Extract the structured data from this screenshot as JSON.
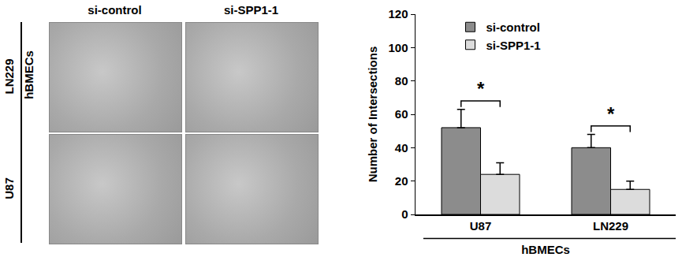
{
  "image_panel": {
    "columns": [
      "si-control",
      "si-SPP1-1"
    ],
    "rows": [
      "LN229",
      "U87"
    ],
    "group_label": "hBMECs"
  },
  "chart_data": {
    "type": "bar",
    "categories": [
      "U87",
      "LN229"
    ],
    "xlabel": "hBMECs",
    "ylabel": "Number of Intersections",
    "series": [
      {
        "name": "si-control",
        "color": "#8c8c8c",
        "values": [
          52,
          40
        ],
        "errors": [
          11,
          8
        ]
      },
      {
        "name": "si-SPP1-1",
        "color": "#dcdcdc",
        "values": [
          24,
          15
        ],
        "errors": [
          7,
          5
        ]
      }
    ],
    "ylim": [
      0,
      120
    ],
    "yticks": [
      0,
      20,
      40,
      60,
      80,
      100,
      120
    ],
    "grid": false,
    "legend": "top-left",
    "annotations": [
      {
        "category": "U87",
        "text": "*",
        "y": 68
      },
      {
        "category": "LN229",
        "text": "*",
        "y": 53
      }
    ]
  }
}
